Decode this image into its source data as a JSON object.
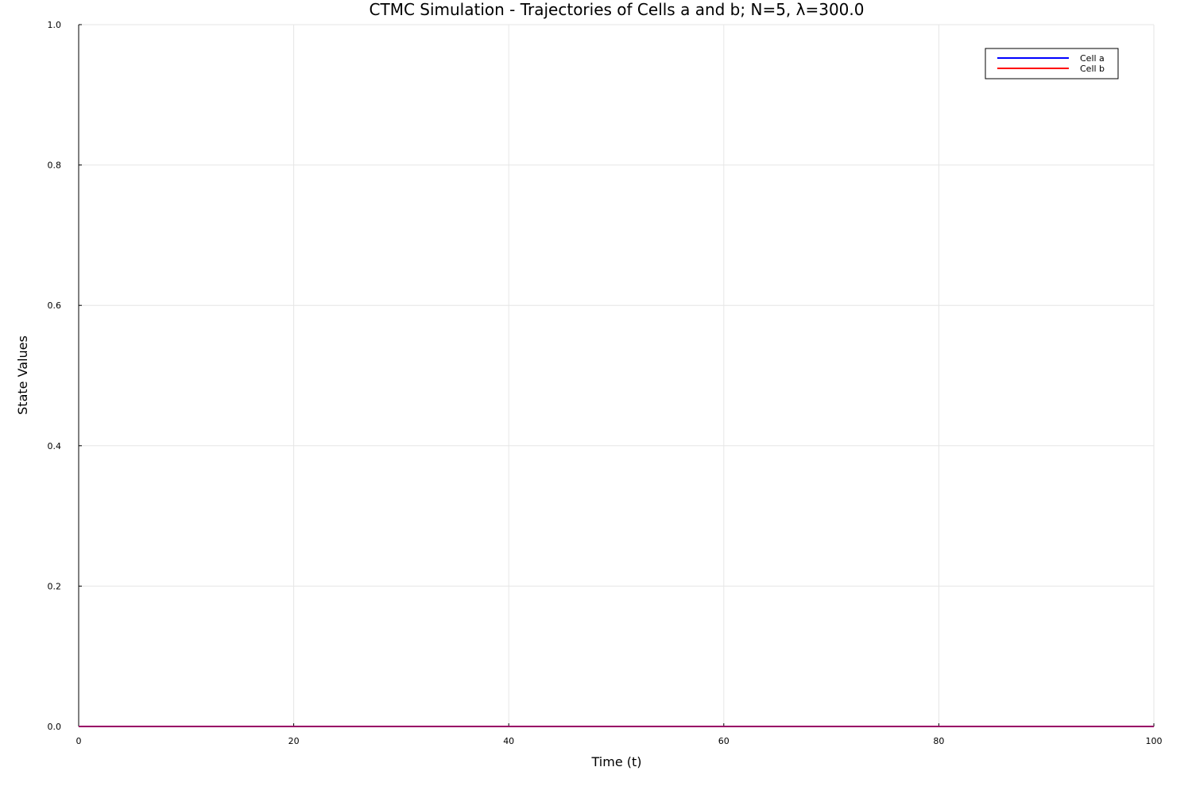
{
  "chart_data": {
    "type": "line",
    "title": "CTMC Simulation - Trajectories of Cells a and b; N=5, λ=300.0",
    "xlabel": "Time (t)",
    "ylabel": "State Values",
    "xlim": [
      0,
      100
    ],
    "ylim": [
      0,
      1
    ],
    "x_ticks": [
      0,
      20,
      40,
      60,
      80,
      100
    ],
    "x_tick_labels": [
      "0",
      "20",
      "40",
      "60",
      "80",
      "100"
    ],
    "y_ticks": [
      0,
      0.2,
      0.4,
      0.6,
      0.8,
      1.0
    ],
    "y_tick_labels": [
      "0.0",
      "0.2",
      "0.4",
      "0.6",
      "0.8",
      "1.0"
    ],
    "grid": true,
    "legend_position": "top-right",
    "series": [
      {
        "name": "Cell a",
        "color": "#0000ff",
        "x": [
          0,
          100
        ],
        "y": [
          0,
          0
        ]
      },
      {
        "name": "Cell b",
        "color": "#ff0000",
        "x": [
          0,
          100
        ],
        "y": [
          0,
          0
        ]
      }
    ]
  }
}
